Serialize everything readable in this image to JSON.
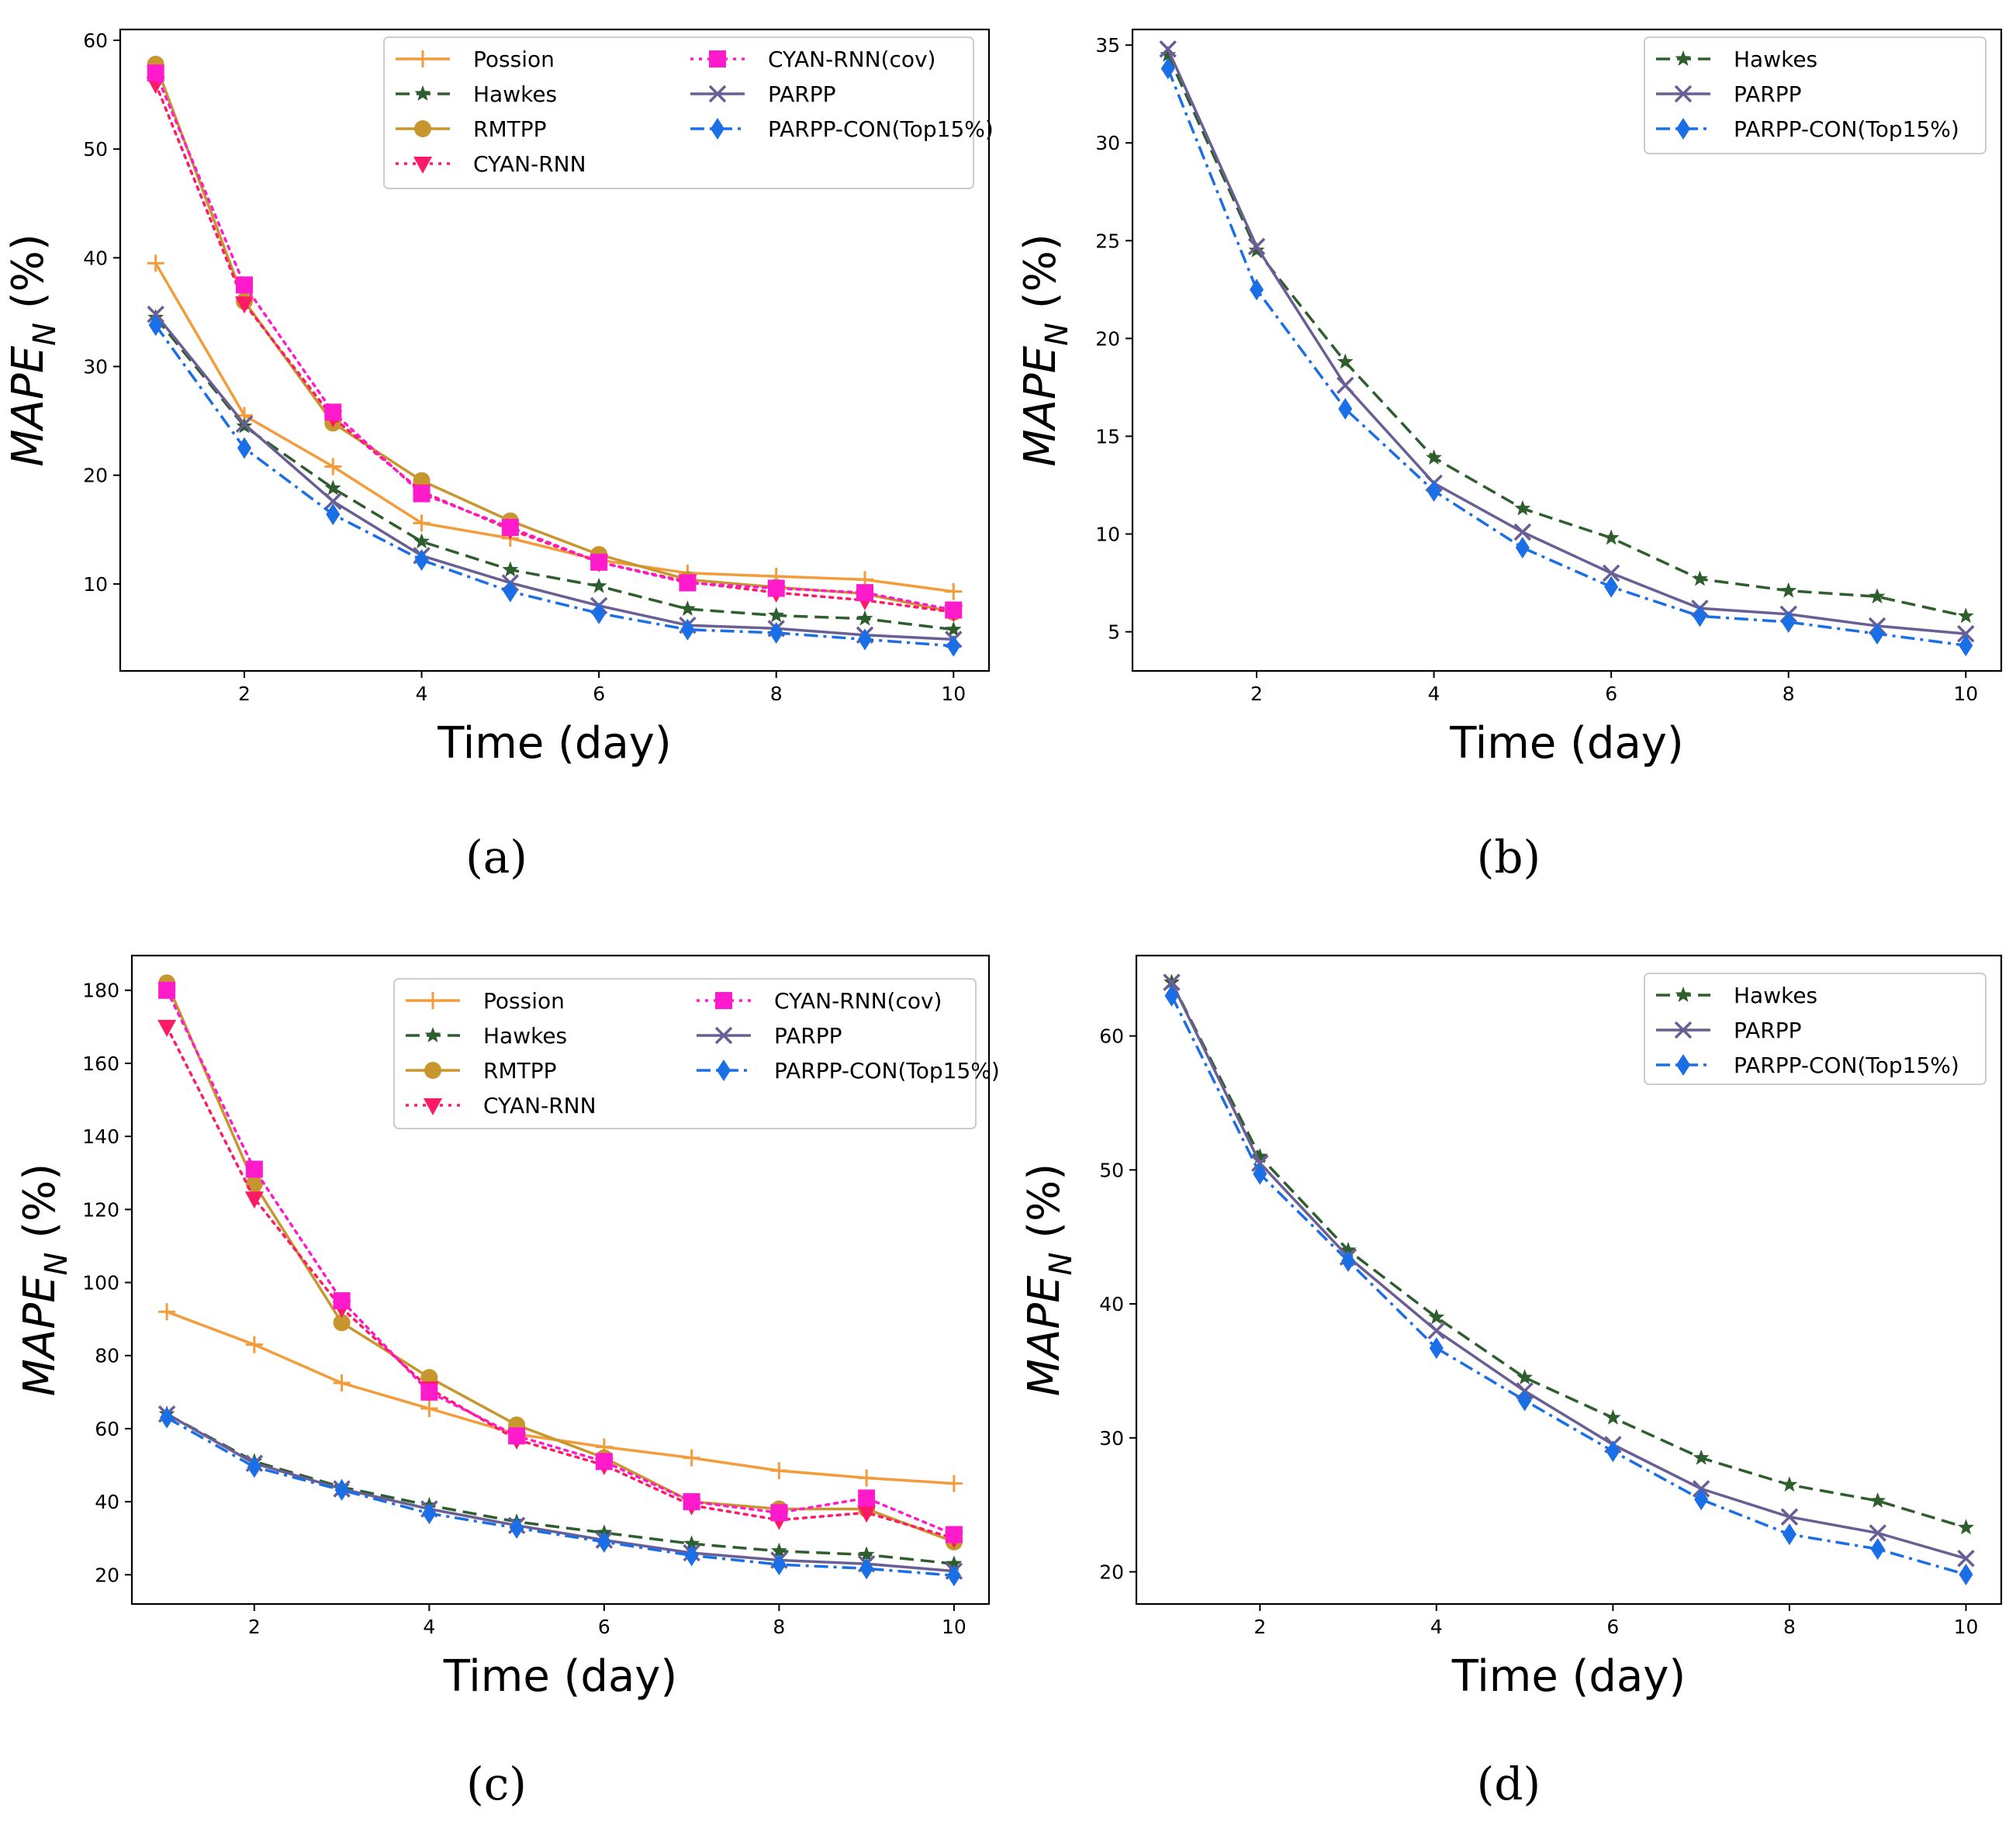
{
  "chart_data": [
    {
      "type": "line",
      "caption": "(a)",
      "xlabel": "Time (day)",
      "ylabel_base": "MAPE",
      "ylabel_sub": "N",
      "ylabel_unit": "(%)",
      "xlim": [
        0.6,
        10.4
      ],
      "ylim": [
        2.0,
        61.0
      ],
      "xticks": [
        2,
        4,
        6,
        8,
        10
      ],
      "yticks": [
        10,
        20,
        30,
        40,
        50,
        60
      ],
      "x": [
        1,
        2,
        3,
        4,
        5,
        6,
        7,
        8,
        9,
        10
      ],
      "legend_columns": 2,
      "series": [
        {
          "name": "Possion",
          "color": "#f39c3c",
          "marker": "plus",
          "dash": "solid",
          "values": [
            39.5,
            25.5,
            20.8,
            15.6,
            14.2,
            12.2,
            11.0,
            10.7,
            10.4,
            9.3
          ]
        },
        {
          "name": "Hawkes",
          "color": "#2e5e2e",
          "marker": "star",
          "dash": "dashed",
          "values": [
            34.5,
            24.5,
            18.8,
            13.9,
            11.3,
            9.8,
            7.7,
            7.1,
            6.8,
            5.8
          ]
        },
        {
          "name": "RMTPP",
          "color": "#c8962e",
          "marker": "circle",
          "dash": "solid",
          "values": [
            57.8,
            36.0,
            24.8,
            19.5,
            15.8,
            12.7,
            10.4,
            9.7,
            9.1,
            7.4
          ]
        },
        {
          "name": "CYAN-RNN",
          "color": "#ff1a66",
          "marker": "triangle-down",
          "dash": "dotted",
          "values": [
            56.0,
            35.8,
            25.3,
            18.5,
            15.0,
            12.0,
            10.2,
            9.2,
            8.5,
            7.4
          ]
        },
        {
          "name": "CYAN-RNN(cov)",
          "color": "#ff1acb",
          "marker": "square",
          "dash": "dotted",
          "values": [
            57.0,
            37.5,
            25.8,
            18.3,
            15.2,
            12.0,
            10.1,
            9.6,
            9.2,
            7.6
          ]
        },
        {
          "name": "PARPP",
          "color": "#6a5f94",
          "marker": "x",
          "dash": "solid",
          "values": [
            34.8,
            24.7,
            17.6,
            12.6,
            10.1,
            8.0,
            6.2,
            5.9,
            5.3,
            4.9
          ]
        },
        {
          "name": "PARPP-CON(Top15%)",
          "color": "#1a6fe6",
          "marker": "diamond",
          "dash": "dashdot",
          "values": [
            33.8,
            22.5,
            16.4,
            12.2,
            9.3,
            7.3,
            5.8,
            5.5,
            4.9,
            4.3
          ]
        }
      ]
    },
    {
      "type": "line",
      "caption": "(b)",
      "xlabel": "Time (day)",
      "ylabel_base": "MAPE",
      "ylabel_sub": "N",
      "ylabel_unit": "(%)",
      "xlim": [
        0.6,
        10.4
      ],
      "ylim": [
        3.0,
        35.8
      ],
      "xticks": [
        2,
        4,
        6,
        8,
        10
      ],
      "yticks": [
        5,
        10,
        15,
        20,
        25,
        30,
        35
      ],
      "x": [
        1,
        2,
        3,
        4,
        5,
        6,
        7,
        8,
        9,
        10
      ],
      "legend_columns": 1,
      "series": [
        {
          "name": "Hawkes",
          "color": "#2e5e2e",
          "marker": "star",
          "dash": "dashed",
          "values": [
            34.5,
            24.5,
            18.8,
            13.9,
            11.3,
            9.8,
            7.7,
            7.1,
            6.8,
            5.8
          ]
        },
        {
          "name": "PARPP",
          "color": "#6a5f94",
          "marker": "x",
          "dash": "solid",
          "values": [
            34.8,
            24.7,
            17.6,
            12.6,
            10.1,
            8.0,
            6.2,
            5.9,
            5.3,
            4.9
          ]
        },
        {
          "name": "PARPP-CON(Top15%)",
          "color": "#1a6fe6",
          "marker": "diamond",
          "dash": "dashdot",
          "values": [
            33.8,
            22.5,
            16.4,
            12.2,
            9.3,
            7.3,
            5.8,
            5.5,
            4.9,
            4.3
          ]
        }
      ]
    },
    {
      "type": "line",
      "caption": "(c)",
      "xlabel": "Time (day)",
      "ylabel_base": "MAPE",
      "ylabel_sub": "N",
      "ylabel_unit": "(%)",
      "xlim": [
        0.6,
        10.4
      ],
      "ylim": [
        12.0,
        189.5
      ],
      "xticks": [
        2,
        4,
        6,
        8,
        10
      ],
      "yticks": [
        20,
        40,
        60,
        80,
        100,
        120,
        140,
        160,
        180
      ],
      "x": [
        1,
        2,
        3,
        4,
        5,
        6,
        7,
        8,
        9,
        10
      ],
      "legend_columns": 2,
      "series": [
        {
          "name": "Possion",
          "color": "#f39c3c",
          "marker": "plus",
          "dash": "solid",
          "values": [
            92,
            83,
            72.5,
            65.5,
            58.5,
            55,
            52,
            48.5,
            46.5,
            45
          ]
        },
        {
          "name": "Hawkes",
          "color": "#2e5e2e",
          "marker": "star",
          "dash": "dashed",
          "values": [
            64,
            51,
            44,
            39,
            34.5,
            31.5,
            28.5,
            26.5,
            25.5,
            23
          ]
        },
        {
          "name": "RMTPP",
          "color": "#c8962e",
          "marker": "circle",
          "dash": "solid",
          "values": [
            182,
            127,
            89,
            74,
            61,
            52,
            40,
            38,
            38,
            29
          ]
        },
        {
          "name": "CYAN-RNN",
          "color": "#ff1a66",
          "marker": "triangle-down",
          "dash": "dotted",
          "values": [
            170,
            123,
            93,
            71,
            57,
            50,
            39,
            35,
            37,
            30
          ]
        },
        {
          "name": "CYAN-RNN(cov)",
          "color": "#ff1acb",
          "marker": "square",
          "dash": "dotted",
          "values": [
            180,
            131,
            95,
            70,
            58,
            51,
            40,
            37,
            41,
            31
          ]
        },
        {
          "name": "PARPP",
          "color": "#6a5f94",
          "marker": "x",
          "dash": "solid",
          "values": [
            64,
            50.5,
            43.5,
            38,
            33.5,
            29.5,
            26,
            24,
            23,
            21
          ]
        },
        {
          "name": "PARPP-CON(Top15%)",
          "color": "#1a6fe6",
          "marker": "diamond",
          "dash": "dashdot",
          "values": [
            63,
            49.5,
            43.2,
            36.8,
            32.8,
            29,
            25.3,
            22.8,
            21.7,
            19.8
          ]
        }
      ]
    },
    {
      "type": "line",
      "caption": "(d)",
      "xlabel": "Time (day)",
      "ylabel_base": "MAPE",
      "ylabel_sub": "N",
      "ylabel_unit": "(%)",
      "xlim": [
        0.6,
        10.4
      ],
      "ylim": [
        17.6,
        66.0
      ],
      "xticks": [
        2,
        4,
        6,
        8,
        10
      ],
      "yticks": [
        20,
        30,
        40,
        50,
        60
      ],
      "x": [
        1,
        2,
        3,
        4,
        5,
        6,
        7,
        8,
        9,
        10
      ],
      "legend_columns": 1,
      "series": [
        {
          "name": "Hawkes",
          "color": "#2e5e2e",
          "marker": "star",
          "dash": "dashed",
          "values": [
            64,
            51,
            44,
            39,
            34.5,
            31.5,
            28.5,
            26.5,
            25.3,
            23.3
          ]
        },
        {
          "name": "PARPP",
          "color": "#6a5f94",
          "marker": "x",
          "dash": "solid",
          "values": [
            64,
            50.5,
            43.5,
            38,
            33.5,
            29.5,
            26.2,
            24.1,
            22.9,
            21
          ]
        },
        {
          "name": "PARPP-CON(Top15%)",
          "color": "#1a6fe6",
          "marker": "diamond",
          "dash": "dashdot",
          "values": [
            63,
            49.7,
            43.2,
            36.7,
            32.8,
            29,
            25.4,
            22.8,
            21.7,
            19.8
          ]
        }
      ]
    }
  ]
}
